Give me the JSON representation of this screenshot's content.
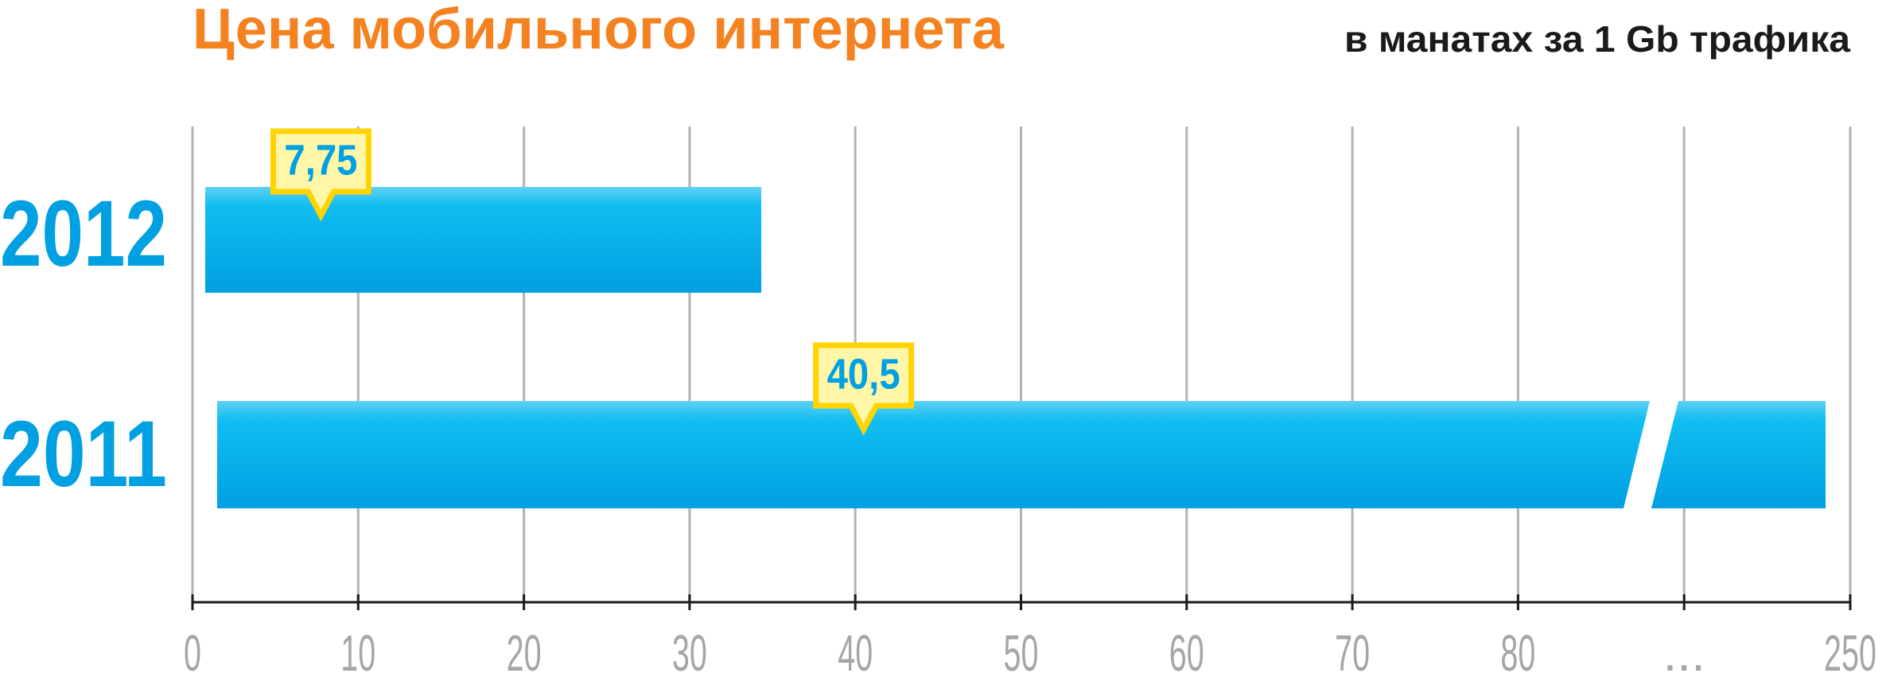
{
  "chart_data": {
    "type": "bar",
    "orientation": "horizontal",
    "title": "Цена мобильного интернета",
    "subtitle": "в манатах за 1 Gb трафика",
    "categories": [
      "2012",
      "2011"
    ],
    "values": [
      7.75,
      40.5
    ],
    "value_labels": [
      "7,75",
      "40,5"
    ],
    "color": "#00a0e3",
    "xlim": [
      0,
      250
    ],
    "xticks": [
      0,
      10,
      20,
      30,
      40,
      50,
      60,
      70,
      80,
      250
    ],
    "break_label": "...",
    "grid": true
  }
}
